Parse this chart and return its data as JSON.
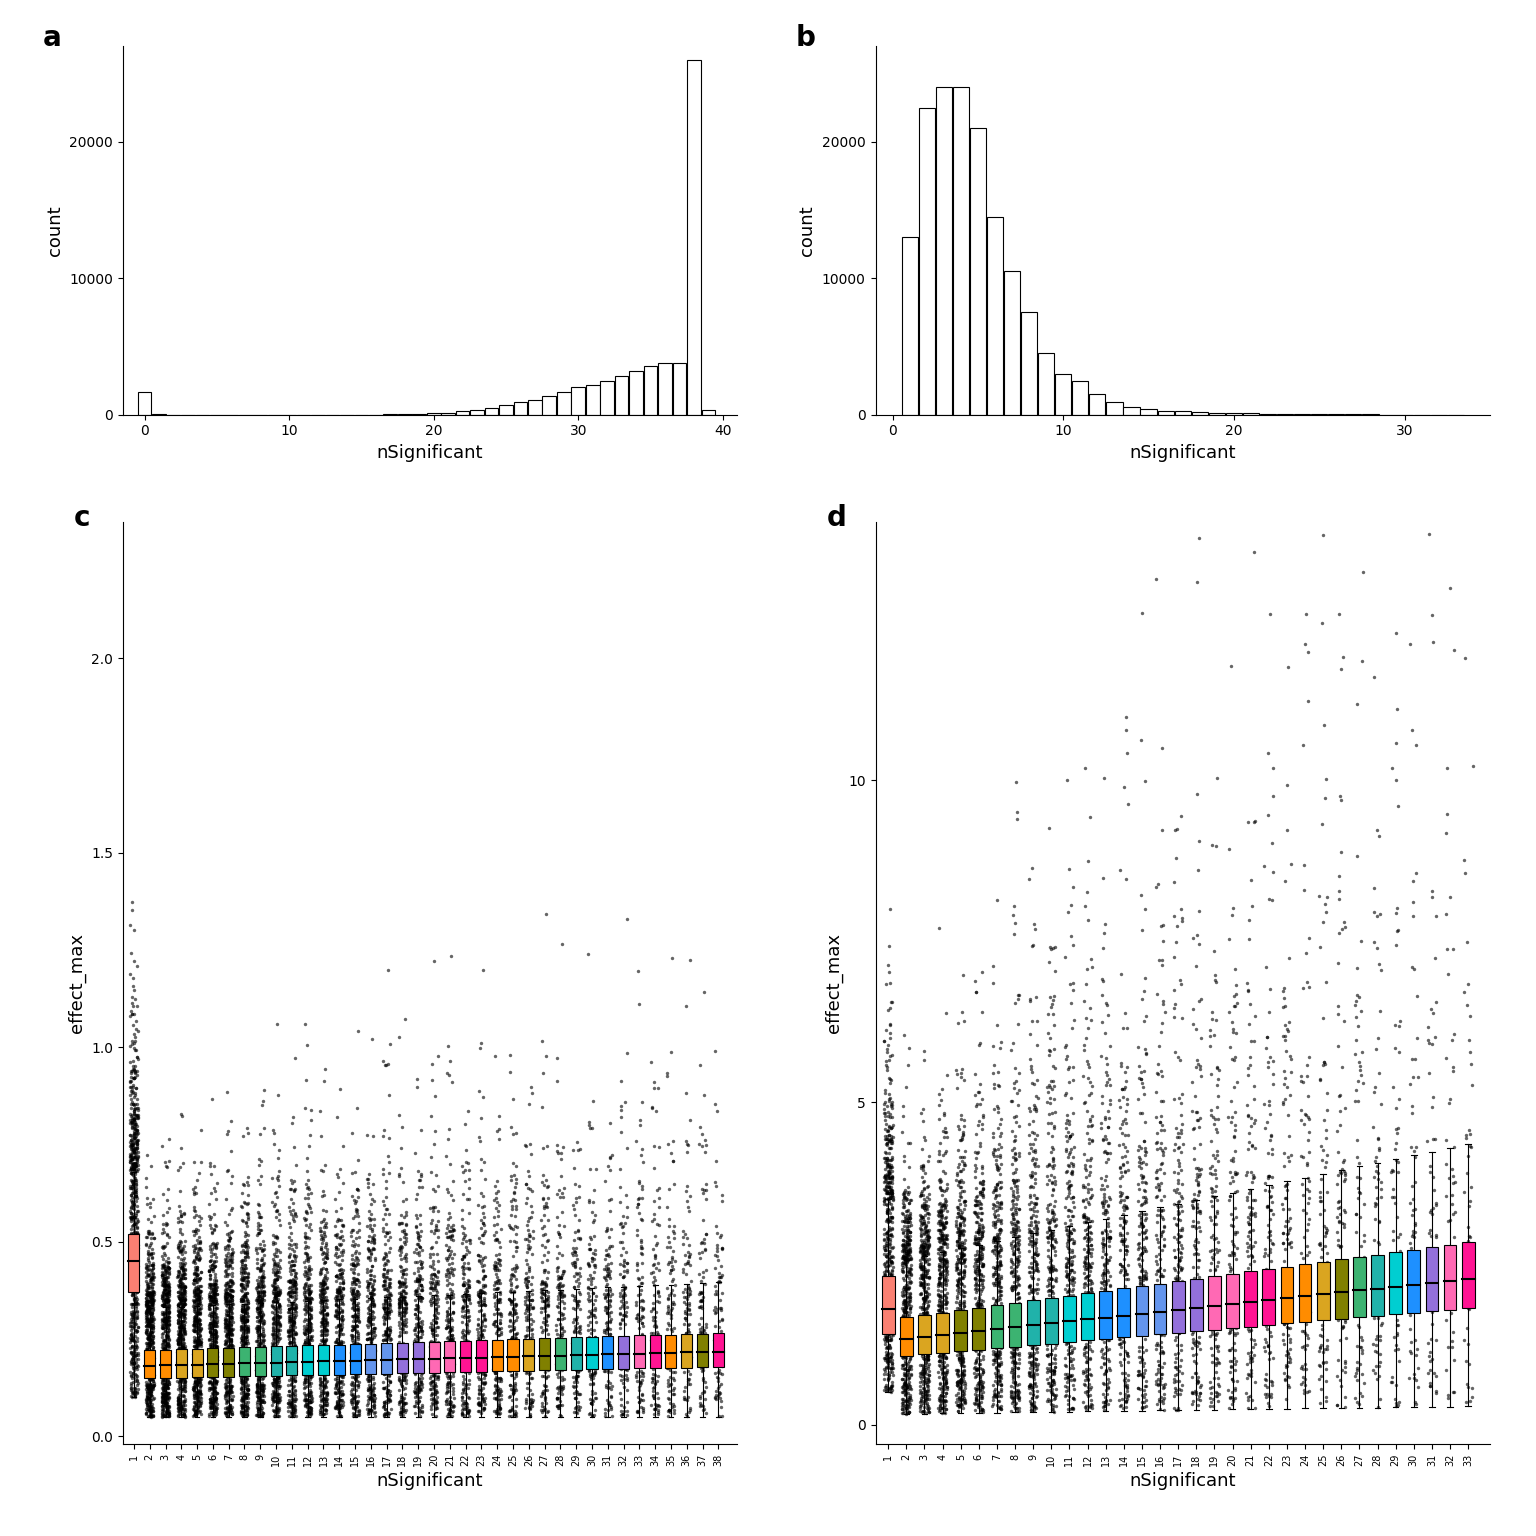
{
  "hist_a": {
    "bins": [
      0,
      1,
      2,
      3,
      4,
      5,
      6,
      7,
      8,
      9,
      10,
      11,
      12,
      13,
      14,
      15,
      16,
      17,
      18,
      19,
      20,
      21,
      22,
      23,
      24,
      25,
      26,
      27,
      28,
      29,
      30,
      31,
      32,
      33,
      34,
      35,
      36,
      37,
      38,
      39
    ],
    "counts": [
      1700,
      30,
      10,
      8,
      6,
      5,
      4,
      4,
      3,
      3,
      3,
      3,
      3,
      3,
      3,
      3,
      10,
      20,
      40,
      70,
      110,
      160,
      250,
      370,
      520,
      700,
      900,
      1100,
      1400,
      1700,
      2000,
      2200,
      2500,
      2800,
      3200,
      3600,
      3800,
      3800,
      26000,
      380
    ]
  },
  "hist_b": {
    "bins": [
      1,
      2,
      3,
      4,
      5,
      6,
      7,
      8,
      9,
      10,
      11,
      12,
      13,
      14,
      15,
      16,
      17,
      18,
      19,
      20,
      21,
      22,
      23,
      24,
      25,
      26,
      27,
      28,
      29,
      30,
      31,
      32,
      33
    ],
    "counts": [
      13000,
      22500,
      24000,
      24000,
      21000,
      14500,
      10500,
      7500,
      4500,
      3000,
      2500,
      1500,
      900,
      600,
      400,
      300,
      250,
      200,
      150,
      120,
      100,
      80,
      60,
      50,
      40,
      30,
      25,
      20,
      15,
      12,
      10,
      8,
      6
    ]
  },
  "panel_a_ylim": [
    0,
    27000
  ],
  "panel_a_yticks": [
    0,
    10000,
    20000
  ],
  "panel_a_xticks": [
    0,
    10,
    20,
    30,
    40
  ],
  "panel_b_ylim": [
    0,
    27000
  ],
  "panel_b_yticks": [
    0,
    10000,
    20000
  ],
  "panel_b_xticks": [
    0,
    10,
    20,
    30
  ],
  "box_colors_c": [
    "#F08080",
    "#FF8C00",
    "#FF8C00",
    "#DAA520",
    "#DAA520",
    "#6B8E23",
    "#6B8E23",
    "#3CB371",
    "#3CB371",
    "#20B2AA",
    "#20B2AA",
    "#00CED1",
    "#00CED1",
    "#1E90FF",
    "#1E90FF",
    "#6495ED",
    "#6495ED",
    "#9370DB",
    "#9370DB",
    "#FF69B4",
    "#FF69B4",
    "#FF1493",
    "#FF1493",
    "#FF8C00",
    "#FF8C00",
    "#DAA520",
    "#6B8E23",
    "#3CB371",
    "#20B2AA",
    "#00CED1",
    "#1E90FF",
    "#9370DB",
    "#FF69B4",
    "#FF1493",
    "#FF8C00",
    "#DAA520",
    "#6B8E23",
    "#FF1493"
  ],
  "box_colors_d": [
    "#F08080",
    "#FF8C00",
    "#DAA520",
    "#DAA520",
    "#6B8E23",
    "#6B8E23",
    "#3CB371",
    "#3CB371",
    "#20B2AA",
    "#20B2AA",
    "#00CED1",
    "#00CED1",
    "#1E90FF",
    "#1E90FF",
    "#6495ED",
    "#6495ED",
    "#9370DB",
    "#9370DB",
    "#FF69B4",
    "#FF69B4",
    "#FF1493",
    "#FF1493",
    "#FF8C00",
    "#FF8C00",
    "#DAA520",
    "#6B8E23",
    "#3CB371",
    "#20B2AA",
    "#00CED1",
    "#1E90FF",
    "#9370DB",
    "#FF69B4",
    "#FF1493"
  ],
  "panel_c_ylim": [
    -0.02,
    2.35
  ],
  "panel_c_yticks": [
    0.0,
    0.5,
    1.0,
    1.5,
    2.0
  ],
  "panel_d_ylim": [
    -0.3,
    14.0
  ],
  "panel_d_yticks": [
    0,
    5,
    10
  ]
}
